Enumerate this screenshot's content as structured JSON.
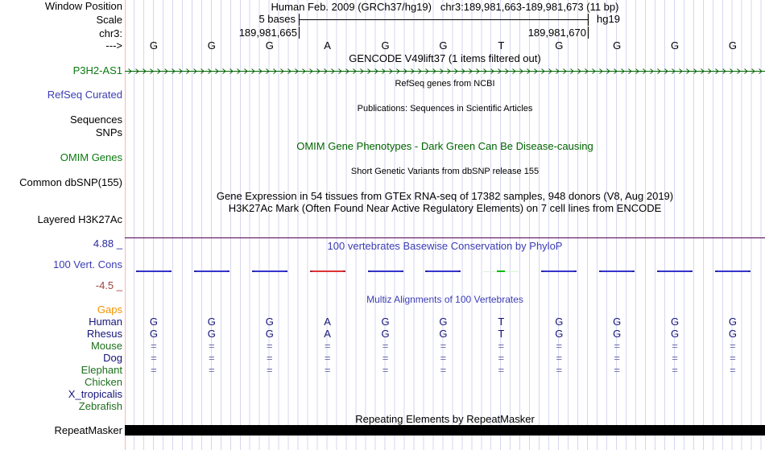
{
  "header": {
    "assembly_title": "Human Feb. 2009 (GRCh37/hg19)",
    "position": "chr3:189,981,663-189,981,673 (11 bp)",
    "window_position_label": "Window Position",
    "scale_row_label": "Scale",
    "scale_label": "5 bases",
    "genome": "hg19",
    "chrom_label": "chr3:",
    "coordinate_left": "189,981,665",
    "coordinate_right": "189,981,670",
    "strand_arrow": "--->"
  },
  "bases": [
    "G",
    "G",
    "G",
    "A",
    "G",
    "G",
    "T",
    "G",
    "G",
    "G",
    "G"
  ],
  "tracks": {
    "gencode": {
      "label": "P3H2-AS1",
      "title": "GENCODE V49lift37 (1 items filtered out)"
    },
    "refseq": {
      "label": "RefSeq Curated",
      "title": "RefSeq genes from NCBI"
    },
    "publications": {
      "labels": [
        "Sequences",
        "SNPs"
      ],
      "title": "Publications: Sequences in Scientific Articles"
    },
    "omim": {
      "label": "OMIM Genes",
      "title": "OMIM Gene Phenotypes - Dark Green Can Be Disease-causing"
    },
    "dbsnp": {
      "label": "Common dbSNP(155)",
      "title": "Short Genetic Variants from dbSNP release 155"
    },
    "gtex": {
      "title": "Gene Expression in 54 tissues from GTEx RNA-seq of 17382 samples, 948 donors (V8, Aug 2019)"
    },
    "h3k27ac": {
      "label": "Layered H3K27Ac",
      "title": "H3K27Ac Mark (Often Found Near Active Regulatory Elements) on 7 cell lines from ENCODE"
    },
    "phylop": {
      "label": "100 Vert. Cons",
      "title": "100 vertebrates Basewise Conservation by PhyloP",
      "scale_max": "4.88 _",
      "scale_min": "-4.5 _",
      "marks": [
        "blue",
        "blue",
        "blue",
        "red",
        "blue",
        "blue",
        "green",
        "blue",
        "blue",
        "blue",
        "blue"
      ]
    },
    "multiz": {
      "title": "Multiz Alignments of 100 Vertebrates",
      "gaps_label": "Gaps",
      "species": [
        {
          "name": "Human",
          "color": "navy",
          "cells": "bases"
        },
        {
          "name": "Rhesus",
          "color": "navy",
          "cells": "bases"
        },
        {
          "name": "Mouse",
          "color": "green",
          "cells": "equals"
        },
        {
          "name": "Dog",
          "color": "navy",
          "cells": "equals"
        },
        {
          "name": "Elephant",
          "color": "green",
          "cells": "equals"
        },
        {
          "name": "Chicken",
          "color": "green",
          "cells": "none"
        },
        {
          "name": "X_tropicalis",
          "color": "navy",
          "cells": "none"
        },
        {
          "name": "Zebrafish",
          "color": "green",
          "cells": "none"
        }
      ]
    },
    "repeatmasker": {
      "label": "RepeatMasker",
      "title": "Repeating Elements by RepeatMasker"
    }
  },
  "colors": {
    "grid": "#d6d6f0",
    "divider": "#ffb4b4",
    "gene_green": "#0b7a10",
    "arrow_green": "#006400",
    "omim_green": "#006400",
    "track_blue": "#3c3cb4",
    "navy": "#14147a",
    "green": "#1d6f1d",
    "orange": "#f29400",
    "equals": "#6a6aae",
    "cons_blue": "#3434cc",
    "cons_red": "#dd3333",
    "cons_green": "#00bb00",
    "cons_green_halo": "#d8f3d8",
    "scale_max_blue": "#2828a0",
    "scale_min_red": "#9c4242",
    "purple_line": "#500050",
    "repeat_black": "#000000"
  }
}
